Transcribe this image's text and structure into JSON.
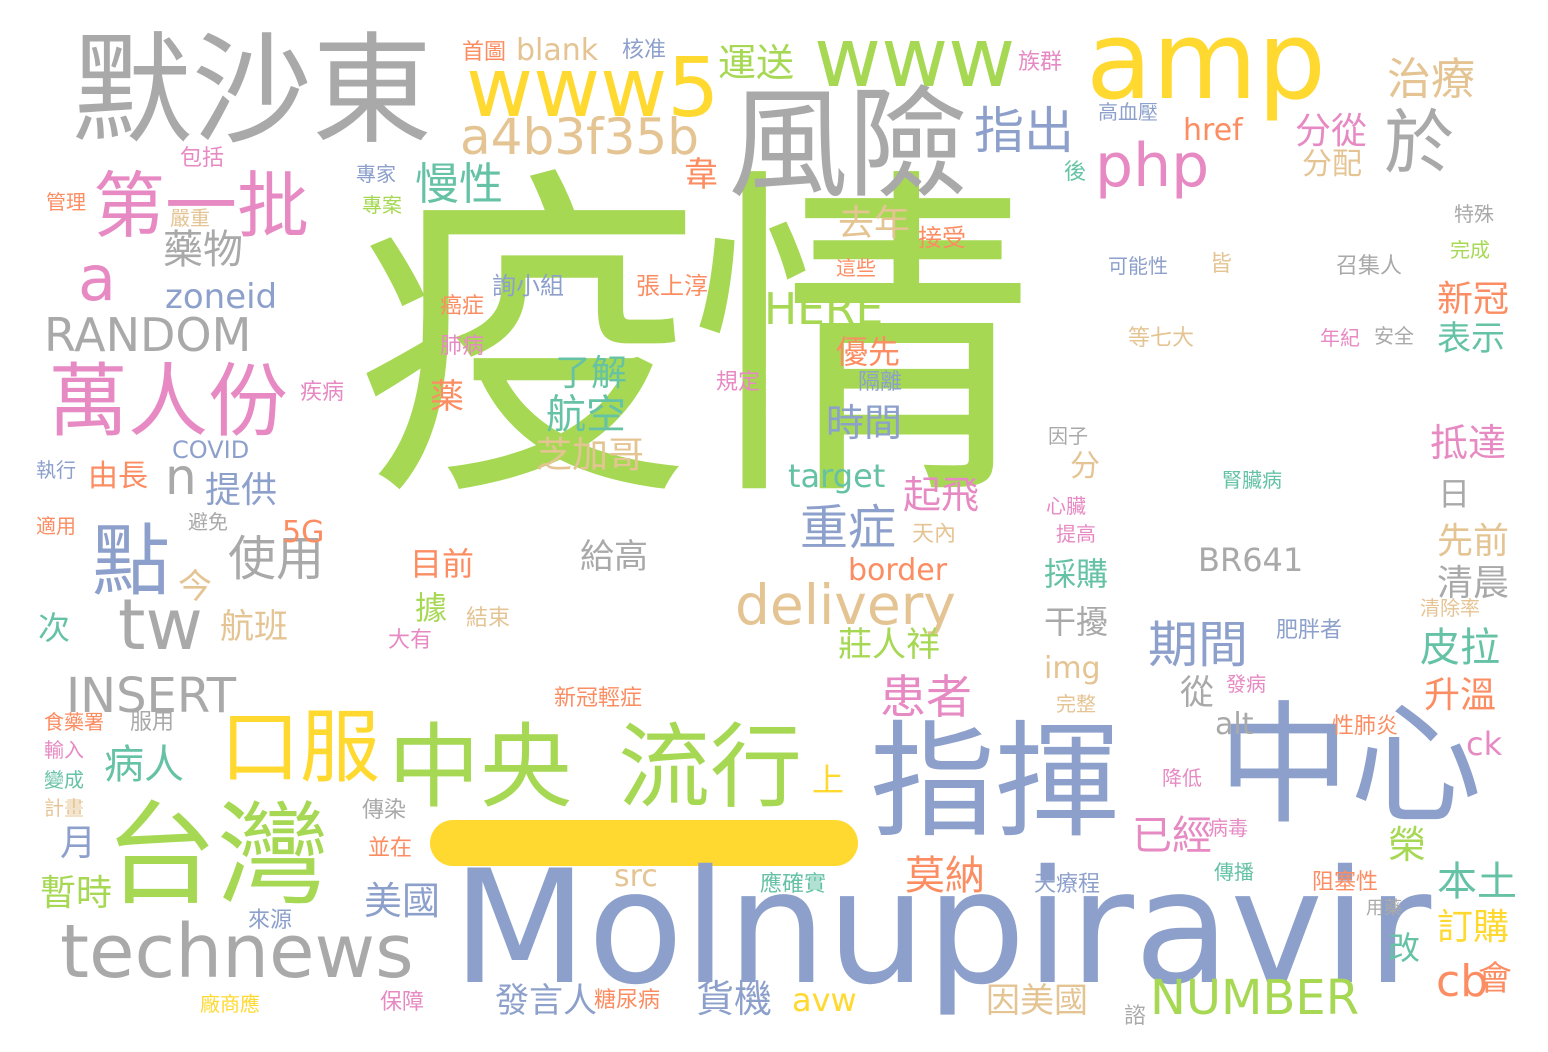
{
  "palette": {
    "green": "#a6d854",
    "gray": "#a9a9a9",
    "blue": "#8da0cb",
    "yellow": "#ffd92f",
    "pink": "#e78ac3",
    "orange": "#fc8d62",
    "teal": "#66c2a5",
    "tan": "#e5c494"
  },
  "words": [
    {
      "text": "疫情",
      "color": "green"
    },
    {
      "text": "Molnupiravir",
      "color": "blue"
    },
    {
      "text": "指揮",
      "color": "blue"
    },
    {
      "text": "中心",
      "color": "blue"
    },
    {
      "text": "默沙東",
      "color": "gray"
    },
    {
      "text": "amp",
      "color": "yellow"
    },
    {
      "text": "風險",
      "color": "gray"
    },
    {
      "text": "台灣",
      "color": "green"
    },
    {
      "text": "technews",
      "color": "gray"
    },
    {
      "text": "中央",
      "color": "green"
    },
    {
      "text": "流行",
      "color": "green"
    },
    {
      "text": "www",
      "color": "green"
    },
    {
      "text": "www5",
      "color": "yellow"
    },
    {
      "text": "第一批",
      "color": "pink"
    },
    {
      "text": "萬人份",
      "color": "pink"
    },
    {
      "text": "口服",
      "color": "yellow"
    },
    {
      "text": "點",
      "color": "blue"
    },
    {
      "text": "tw",
      "color": "gray"
    },
    {
      "text": "a4b3f35b",
      "color": "tan"
    },
    {
      "text": "delivery",
      "color": "tan"
    },
    {
      "text": "php",
      "color": "pink"
    },
    {
      "text": "於",
      "color": "gray"
    },
    {
      "text": "a",
      "color": "pink"
    },
    {
      "text": "RANDOM",
      "color": "gray"
    },
    {
      "text": "INSERT",
      "color": "gray"
    },
    {
      "text": "NUMBER",
      "color": "green"
    },
    {
      "text": "n",
      "color": "gray"
    },
    {
      "text": "HERE",
      "color": "green"
    },
    {
      "text": "指出",
      "color": "blue"
    },
    {
      "text": "治療",
      "color": "tan"
    },
    {
      "text": "運送",
      "color": "green"
    },
    {
      "text": "慢性",
      "color": "teal"
    },
    {
      "text": "藥物",
      "color": "gray"
    },
    {
      "text": "zoneid",
      "color": "blue"
    },
    {
      "text": "去年",
      "color": "tan"
    },
    {
      "text": "分從",
      "color": "pink"
    },
    {
      "text": "分配",
      "color": "tan"
    },
    {
      "text": "韋",
      "color": "orange"
    },
    {
      "text": "blank",
      "color": "tan"
    },
    {
      "text": "首圖",
      "color": "orange"
    },
    {
      "text": "核准",
      "color": "blue"
    },
    {
      "text": "族群",
      "color": "pink"
    },
    {
      "text": "高血壓",
      "color": "blue"
    },
    {
      "text": "href",
      "color": "orange"
    },
    {
      "text": "新冠",
      "color": "orange"
    },
    {
      "text": "表示",
      "color": "teal"
    },
    {
      "text": "使用",
      "color": "gray"
    },
    {
      "text": "病人",
      "color": "teal"
    },
    {
      "text": "患者",
      "color": "pink"
    },
    {
      "text": "重症",
      "color": "blue"
    },
    {
      "text": "期間",
      "color": "blue"
    },
    {
      "text": "航空",
      "color": "teal"
    },
    {
      "text": "了解",
      "color": "teal"
    },
    {
      "text": "芝加哥",
      "color": "tan"
    },
    {
      "text": "時間",
      "color": "blue"
    },
    {
      "text": "優先",
      "color": "orange"
    },
    {
      "text": "起飛",
      "color": "pink"
    },
    {
      "text": "target",
      "color": "teal"
    },
    {
      "text": "提供",
      "color": "blue"
    },
    {
      "text": "由長",
      "color": "orange"
    },
    {
      "text": "5G",
      "color": "orange"
    },
    {
      "text": "今",
      "color": "tan"
    },
    {
      "text": "航班",
      "color": "tan"
    },
    {
      "text": "目前",
      "color": "orange"
    },
    {
      "text": "給高",
      "color": "gray"
    },
    {
      "text": "BR641",
      "color": "gray"
    },
    {
      "text": "border",
      "color": "orange"
    },
    {
      "text": "採購",
      "color": "teal"
    },
    {
      "text": "干擾",
      "color": "gray"
    },
    {
      "text": "莊人祥",
      "color": "green"
    },
    {
      "text": "img",
      "color": "tan"
    },
    {
      "text": "alt",
      "color": "gray"
    },
    {
      "text": "從",
      "color": "gray"
    },
    {
      "text": "皮拉",
      "color": "teal"
    },
    {
      "text": "升溫",
      "color": "orange"
    },
    {
      "text": "抵達",
      "color": "pink"
    },
    {
      "text": "日",
      "color": "gray"
    },
    {
      "text": "先前",
      "color": "tan"
    },
    {
      "text": "清晨",
      "color": "gray"
    },
    {
      "text": "已經",
      "color": "pink"
    },
    {
      "text": "莫納",
      "color": "orange"
    },
    {
      "text": "美國",
      "color": "blue"
    },
    {
      "text": "src",
      "color": "tan"
    },
    {
      "text": "榮",
      "color": "green"
    },
    {
      "text": "本土",
      "color": "teal"
    },
    {
      "text": "cb",
      "color": "orange"
    },
    {
      "text": "訂購",
      "color": "yellow"
    },
    {
      "text": "會",
      "color": "orange"
    },
    {
      "text": "改",
      "color": "teal"
    },
    {
      "text": "ck",
      "color": "pink"
    },
    {
      "text": "貨機",
      "color": "blue"
    },
    {
      "text": "avw",
      "color": "yellow"
    },
    {
      "text": "發言人",
      "color": "blue"
    },
    {
      "text": "因美國",
      "color": "tan"
    },
    {
      "text": "暫時",
      "color": "green"
    },
    {
      "text": "月",
      "color": "blue"
    },
    {
      "text": "上",
      "color": "yellow"
    },
    {
      "text": "分",
      "color": "tan"
    },
    {
      "text": "據",
      "color": "green"
    },
    {
      "text": "次",
      "color": "teal"
    },
    {
      "text": "薬",
      "color": "orange"
    },
    {
      "text": "包括",
      "color": "pink"
    },
    {
      "text": "管理",
      "color": "orange"
    },
    {
      "text": "嚴重",
      "color": "tan"
    },
    {
      "text": "專家",
      "color": "blue"
    },
    {
      "text": "專案",
      "color": "green"
    },
    {
      "text": "接受",
      "color": "orange"
    },
    {
      "text": "這些",
      "color": "orange"
    },
    {
      "text": "詢小組",
      "color": "blue"
    },
    {
      "text": "張上淳",
      "color": "orange"
    },
    {
      "text": "癌症",
      "color": "orange"
    },
    {
      "text": "肺病",
      "color": "pink"
    },
    {
      "text": "規定",
      "color": "pink"
    },
    {
      "text": "隔離",
      "color": "blue"
    },
    {
      "text": "疾病",
      "color": "pink"
    },
    {
      "text": "COVID",
      "color": "blue"
    },
    {
      "text": "執行",
      "color": "blue"
    },
    {
      "text": "適用",
      "color": "orange"
    },
    {
      "text": "避免",
      "color": "gray"
    },
    {
      "text": "天內",
      "color": "tan"
    },
    {
      "text": "結束",
      "color": "tan"
    },
    {
      "text": "大有",
      "color": "pink"
    },
    {
      "text": "新冠輕症",
      "color": "orange"
    },
    {
      "text": "食藥署",
      "color": "orange"
    },
    {
      "text": "服用",
      "color": "gray"
    },
    {
      "text": "輸入",
      "color": "pink"
    },
    {
      "text": "變成",
      "color": "teal"
    },
    {
      "text": "計畫",
      "color": "tan"
    },
    {
      "text": "傳染",
      "color": "gray"
    },
    {
      "text": "並在",
      "color": "orange"
    },
    {
      "text": "來源",
      "color": "blue"
    },
    {
      "text": "保障",
      "color": "pink"
    },
    {
      "text": "糖尿病",
      "color": "orange"
    },
    {
      "text": "應確實",
      "color": "teal"
    },
    {
      "text": "天療程",
      "color": "blue"
    },
    {
      "text": "諮",
      "color": "gray"
    },
    {
      "text": "廠商應",
      "color": "yellow"
    },
    {
      "text": "後",
      "color": "teal"
    },
    {
      "text": "特殊",
      "color": "gray"
    },
    {
      "text": "完成",
      "color": "green"
    },
    {
      "text": "召集人",
      "color": "gray"
    },
    {
      "text": "可能性",
      "color": "blue"
    },
    {
      "text": "皆",
      "color": "tan"
    },
    {
      "text": "等七大",
      "color": "tan"
    },
    {
      "text": "年紀",
      "color": "pink"
    },
    {
      "text": "安全",
      "color": "gray"
    },
    {
      "text": "因子",
      "color": "gray"
    },
    {
      "text": "腎臟病",
      "color": "teal"
    },
    {
      "text": "心臟",
      "color": "pink"
    },
    {
      "text": "提高",
      "color": "pink"
    },
    {
      "text": "清除率",
      "color": "tan"
    },
    {
      "text": "肥胖者",
      "color": "blue"
    },
    {
      "text": "發病",
      "color": "pink"
    },
    {
      "text": "完整",
      "color": "tan"
    },
    {
      "text": "性肺炎",
      "color": "orange"
    },
    {
      "text": "降低",
      "color": "pink"
    },
    {
      "text": "病毒",
      "color": "pink"
    },
    {
      "text": "傳播",
      "color": "teal"
    },
    {
      "text": "阻塞性",
      "color": "orange"
    },
    {
      "text": "用藥",
      "color": "gray"
    }
  ]
}
